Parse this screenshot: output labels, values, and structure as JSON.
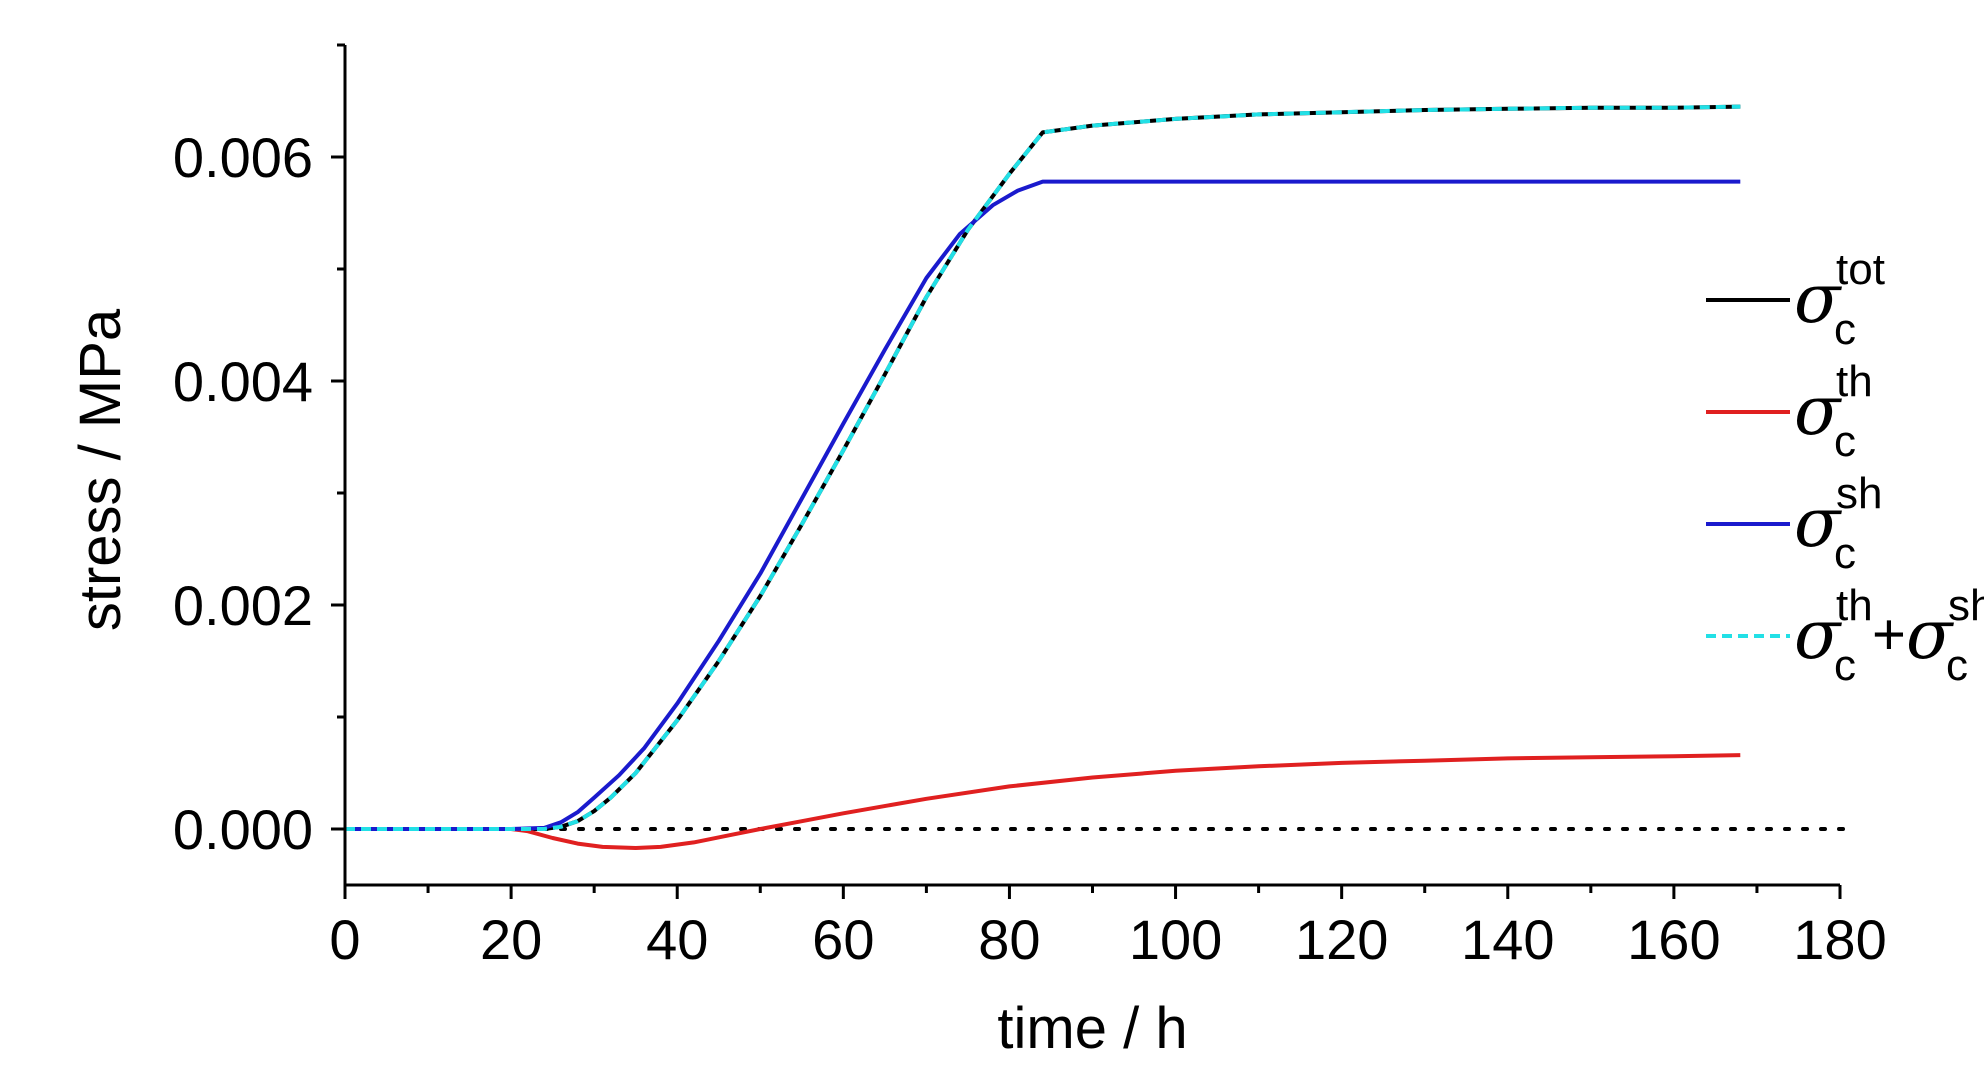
{
  "chart_data": {
    "type": "line",
    "xlabel": "time / h",
    "ylabel": "stress / MPa",
    "xlim": [
      0,
      180
    ],
    "ylim": [
      -0.0005,
      0.007
    ],
    "x_ticks": [
      "0",
      "20",
      "40",
      "60",
      "80",
      "100",
      "120",
      "140",
      "160",
      "180"
    ],
    "y_ticks": [
      "0.000",
      "0.002",
      "0.004",
      "0.006"
    ],
    "x_tick_values": [
      0,
      20,
      40,
      60,
      80,
      100,
      120,
      140,
      160,
      180
    ],
    "y_tick_values": [
      0,
      0.002,
      0.004,
      0.006
    ],
    "zero_line": {
      "y": 0,
      "style": "dotted",
      "color": "#000000"
    },
    "legend_position": "right",
    "series": [
      {
        "key": "tot",
        "color": "#000000",
        "dash": "solid",
        "legend": {
          "symbol": "σ",
          "sub": "c",
          "sup": "tot"
        },
        "x": [
          0,
          20,
          24,
          26,
          28,
          30,
          32,
          35,
          40,
          45,
          50,
          55,
          60,
          65,
          70,
          75,
          80,
          84,
          90,
          100,
          110,
          120,
          130,
          140,
          150,
          160,
          168
        ],
        "y": [
          0,
          0,
          0,
          2e-05,
          7e-05,
          0.00016,
          0.00028,
          0.0005,
          0.00097,
          0.0015,
          0.00208,
          0.00272,
          0.00338,
          0.00406,
          0.00475,
          0.00535,
          0.00585,
          0.00622,
          0.00628,
          0.00634,
          0.00638,
          0.0064,
          0.00642,
          0.00643,
          0.00644,
          0.00644,
          0.00645
        ]
      },
      {
        "key": "th",
        "color": "#e02020",
        "dash": "solid",
        "legend": {
          "symbol": "σ",
          "sub": "c",
          "sup": "th"
        },
        "x": [
          0,
          20,
          22,
          25,
          28,
          31,
          35,
          38,
          42,
          46,
          50,
          55,
          60,
          70,
          80,
          90,
          100,
          110,
          120,
          130,
          140,
          150,
          160,
          168
        ],
        "y": [
          0,
          0,
          -2e-05,
          -8e-05,
          -0.00013,
          -0.00016,
          -0.00017,
          -0.00016,
          -0.00012,
          -6e-05,
          0,
          7e-05,
          0.00014,
          0.00027,
          0.00038,
          0.00046,
          0.00052,
          0.00056,
          0.00059,
          0.00061,
          0.00063,
          0.00064,
          0.00065,
          0.00066
        ]
      },
      {
        "key": "sh",
        "color": "#1a1acd",
        "dash": "solid",
        "legend": {
          "symbol": "σ",
          "sub": "c",
          "sup": "sh"
        },
        "x": [
          0,
          20,
          24,
          26,
          28,
          30,
          33,
          36,
          40,
          45,
          50,
          55,
          60,
          65,
          70,
          74,
          78,
          81,
          84,
          90,
          100,
          120,
          140,
          160,
          168
        ],
        "y": [
          0,
          0,
          1e-05,
          6e-05,
          0.00015,
          0.00028,
          0.00048,
          0.00072,
          0.00112,
          0.00168,
          0.00228,
          0.00295,
          0.00362,
          0.00428,
          0.00492,
          0.00531,
          0.00557,
          0.0057,
          0.00578,
          0.00578,
          0.00578,
          0.00578,
          0.00578,
          0.00578,
          0.00578
        ]
      },
      {
        "key": "th_plus_sh",
        "color": "#22e0e6",
        "dash": "dashed",
        "legend": {
          "symbol": "σ",
          "sub": "c",
          "sup": "th",
          "plus": "+",
          "symbol2": "σ",
          "sub2": "c",
          "sup2": "sh"
        },
        "x": [
          0,
          20,
          24,
          26,
          28,
          30,
          32,
          35,
          40,
          45,
          50,
          55,
          60,
          65,
          70,
          75,
          80,
          84,
          90,
          100,
          110,
          120,
          130,
          140,
          150,
          160,
          168
        ],
        "y": [
          0,
          0,
          0,
          2e-05,
          7e-05,
          0.00016,
          0.00028,
          0.0005,
          0.00097,
          0.0015,
          0.00208,
          0.00272,
          0.00338,
          0.00406,
          0.00475,
          0.00535,
          0.00585,
          0.00622,
          0.00628,
          0.00634,
          0.00638,
          0.0064,
          0.00642,
          0.00643,
          0.00644,
          0.00644,
          0.00645
        ]
      }
    ]
  }
}
